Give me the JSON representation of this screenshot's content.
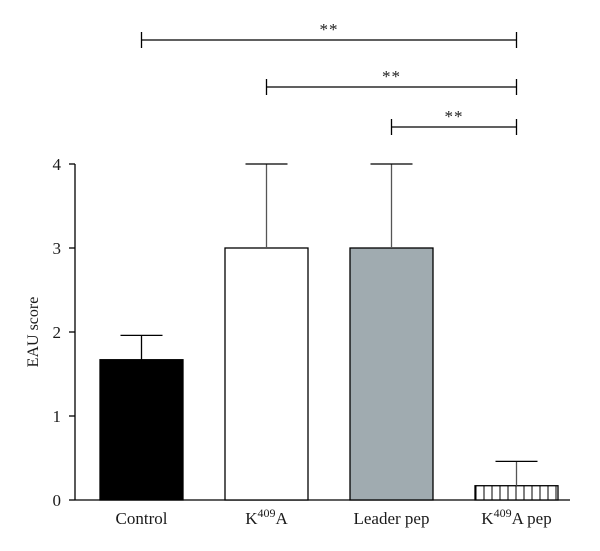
{
  "chart_data": {
    "type": "bar",
    "categories": [
      {
        "base": "Control",
        "sup": "",
        "rest": ""
      },
      {
        "base": "K",
        "sup": "409",
        "rest": "A"
      },
      {
        "base": "Leader pep",
        "sup": "",
        "rest": ""
      },
      {
        "base": "K",
        "sup": "409",
        "rest": "A pep"
      }
    ],
    "values": [
      1.67,
      3.0,
      3.0,
      0.17
    ],
    "errors": [
      0.29,
      1.0,
      1.0,
      0.29
    ],
    "bar_styles": [
      {
        "fill": "#000000",
        "pattern": "solid"
      },
      {
        "fill": "#ffffff",
        "pattern": "solid"
      },
      {
        "fill": "#a0abb0",
        "pattern": "solid"
      },
      {
        "fill": "#ffffff",
        "pattern": "vertical-hatch"
      }
    ],
    "ylabel": "EAU score",
    "xlabel": "",
    "title": "",
    "ylim": [
      0,
      4
    ],
    "yticks": [
      "0",
      "1",
      "2",
      "3",
      "4"
    ],
    "grid": false,
    "significance": [
      {
        "from": 0,
        "to": 3,
        "label": "**"
      },
      {
        "from": 1,
        "to": 3,
        "label": "**"
      },
      {
        "from": 2,
        "to": 3,
        "label": "**"
      }
    ]
  }
}
